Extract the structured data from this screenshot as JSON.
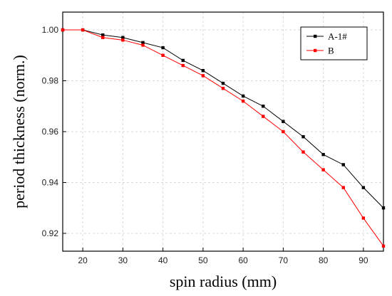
{
  "chart_data": {
    "type": "line",
    "title": "",
    "xlabel": "spin radius (mm)",
    "ylabel": "period thickness (norm.)",
    "xlim": [
      15,
      95
    ],
    "ylim": [
      0.913,
      1.007
    ],
    "xticks": [
      20,
      30,
      40,
      50,
      60,
      70,
      80,
      90
    ],
    "yticks": [
      0.92,
      0.94,
      0.96,
      0.98,
      1.0
    ],
    "ytick_labels": [
      "0.92",
      "0.94",
      "0.96",
      "0.98",
      "1.00"
    ],
    "grid": true,
    "legend_position": "top-right",
    "x": [
      15,
      20,
      25,
      30,
      35,
      40,
      45,
      50,
      55,
      60,
      65,
      70,
      75,
      80,
      85,
      90,
      95
    ],
    "series": [
      {
        "name": "A-1#",
        "color": "#000000",
        "marker": "square",
        "values": [
          1.0,
          1.0,
          0.998,
          0.997,
          0.995,
          0.993,
          0.988,
          0.984,
          0.979,
          0.974,
          0.97,
          0.964,
          0.958,
          0.951,
          0.947,
          0.938,
          0.93
        ]
      },
      {
        "name": "B",
        "color": "#ff0000",
        "marker": "square",
        "values": [
          1.0,
          1.0,
          0.997,
          0.996,
          0.994,
          0.99,
          0.986,
          0.982,
          0.977,
          0.972,
          0.966,
          0.96,
          0.952,
          0.945,
          0.938,
          0.926,
          0.915
        ]
      }
    ]
  }
}
